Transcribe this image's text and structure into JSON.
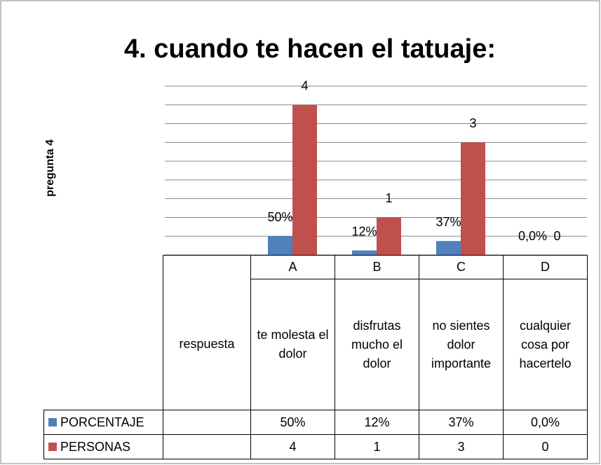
{
  "chart_data": {
    "type": "bar",
    "title": "4. cuando te hacen el tatuaje:",
    "y_axis_label": "pregunta 4",
    "categories": [
      "respuesta",
      "A",
      "B",
      "C",
      "D"
    ],
    "descriptions": [
      null,
      "te molesta el dolor",
      "disfrutas mucho el dolor",
      "no sientes dolor importante",
      "cualquier cosa por hacertelo"
    ],
    "series": [
      {
        "name": "PORCENTAJE",
        "color": "#4f81bd",
        "values": [
          null,
          0.5,
          0.12,
          0.37,
          0
        ],
        "value_labels": [
          null,
          "50%",
          "12%",
          "37%",
          "0,0%"
        ]
      },
      {
        "name": "PERSONAS",
        "color": "#c0504d",
        "values": [
          null,
          4,
          1,
          3,
          0
        ]
      }
    ],
    "ylim": [
      0,
      4.5
    ],
    "yticks": [
      0,
      0.5,
      1,
      1.5,
      2,
      2.5,
      3,
      3.5,
      4,
      4.5
    ],
    "grid": true,
    "data_table": true
  }
}
